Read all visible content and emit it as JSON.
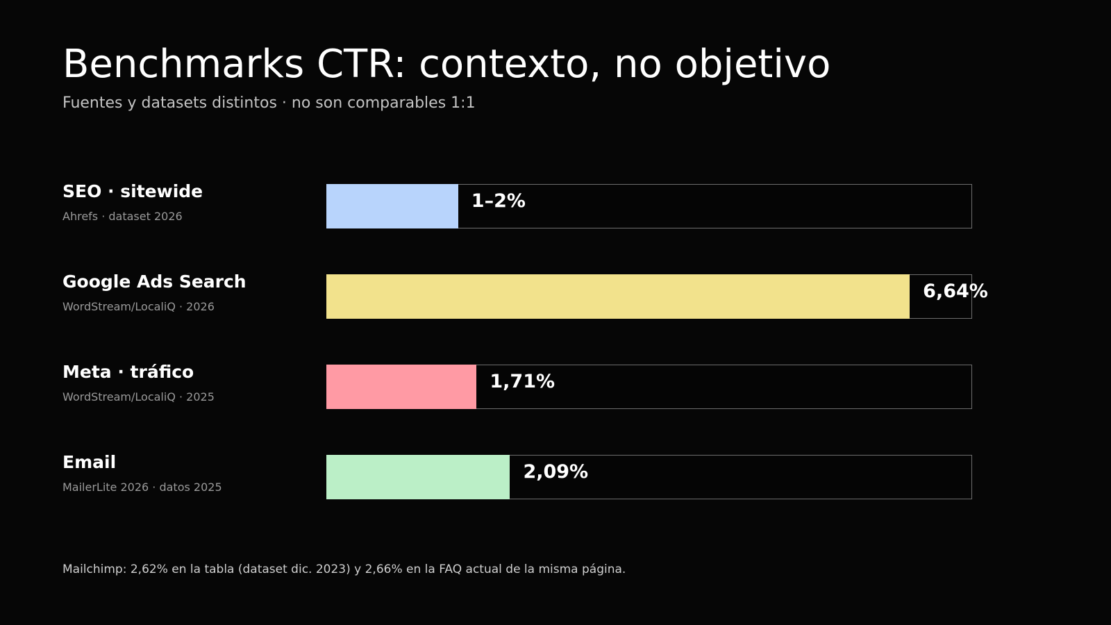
{
  "header": {
    "title": "Benchmarks CTR: contexto, no objetivo",
    "subtitle": "Fuentes y datasets distintos · no son comparables 1:1"
  },
  "chart_data": {
    "type": "bar",
    "orientation": "horizontal",
    "xlim": [
      0,
      7.35
    ],
    "categories": [
      "SEO · sitewide",
      "Google Ads Search",
      "Meta · tráfico",
      "Email"
    ],
    "sources": [
      "Ahrefs · dataset 2026",
      "WordStream/LocaliQ · 2026",
      "WordStream/LocaliQ · 2025",
      "MailerLite 2026 · datos 2025"
    ],
    "values": [
      1.5,
      6.64,
      1.71,
      2.09
    ],
    "value_labels": [
      "1–2%",
      "6,64%",
      "1,71%",
      "2,09%"
    ],
    "colors": [
      "#b8d4fc",
      "#f2e28c",
      "#ff9aa4",
      "#bbefc7"
    ]
  },
  "footnote": "Mailchimp: 2,62% en la tabla (dataset dic. 2023) y 2,66% en la FAQ actual de la misma página."
}
